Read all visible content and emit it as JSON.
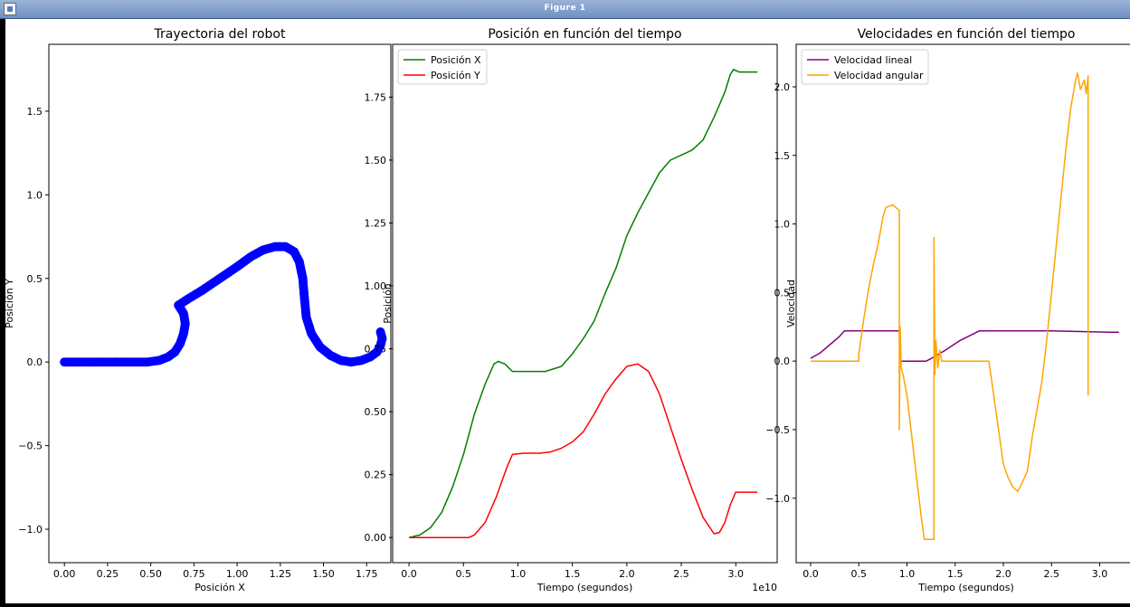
{
  "window": {
    "title": "Figure 1"
  },
  "chart_data": [
    {
      "type": "scatter",
      "title": "Trayectoria del robot",
      "xlabel": "Posición X",
      "ylabel": "Posición Y",
      "xlim": [
        -0.09,
        1.89
      ],
      "ylim": [
        -1.2,
        1.9
      ],
      "x_ticks": [
        "0.00",
        "0.25",
        "0.50",
        "0.75",
        "1.00",
        "1.25",
        "1.50",
        "1.75"
      ],
      "y_ticks": [
        "−1.0",
        "−0.5",
        "0.0",
        "0.5",
        "1.0",
        "1.5"
      ],
      "color": "#0000ff",
      "points": [
        [
          0.0,
          0.0
        ],
        [
          0.1,
          0.0
        ],
        [
          0.2,
          0.0
        ],
        [
          0.3,
          0.0
        ],
        [
          0.4,
          0.0
        ],
        [
          0.48,
          0.0
        ],
        [
          0.55,
          0.01
        ],
        [
          0.6,
          0.03
        ],
        [
          0.64,
          0.06
        ],
        [
          0.67,
          0.11
        ],
        [
          0.69,
          0.17
        ],
        [
          0.7,
          0.23
        ],
        [
          0.69,
          0.29
        ],
        [
          0.66,
          0.34
        ],
        [
          0.72,
          0.38
        ],
        [
          0.8,
          0.43
        ],
        [
          0.9,
          0.5
        ],
        [
          1.0,
          0.57
        ],
        [
          1.08,
          0.63
        ],
        [
          1.15,
          0.67
        ],
        [
          1.22,
          0.69
        ],
        [
          1.28,
          0.69
        ],
        [
          1.33,
          0.66
        ],
        [
          1.36,
          0.6
        ],
        [
          1.38,
          0.5
        ],
        [
          1.39,
          0.38
        ],
        [
          1.4,
          0.27
        ],
        [
          1.43,
          0.17
        ],
        [
          1.48,
          0.09
        ],
        [
          1.54,
          0.04
        ],
        [
          1.6,
          0.01
        ],
        [
          1.66,
          0.0
        ],
        [
          1.72,
          0.01
        ],
        [
          1.77,
          0.03
        ],
        [
          1.81,
          0.06
        ],
        [
          1.83,
          0.1
        ],
        [
          1.84,
          0.14
        ],
        [
          1.83,
          0.18
        ]
      ]
    },
    {
      "type": "line",
      "title": "Posición en función del tiempo",
      "xlabel": "Tiempo (segundos)",
      "ylabel": "Posición",
      "x_offset_label": "1e10",
      "xlim": [
        -0.15,
        3.38
      ],
      "ylim": [
        -0.1,
        1.96
      ],
      "x_ticks": [
        "0.0",
        "0.5",
        "1.0",
        "1.5",
        "2.0",
        "2.5",
        "3.0"
      ],
      "y_ticks": [
        "0.00",
        "0.25",
        "0.50",
        "0.75",
        "1.00",
        "1.25",
        "1.50",
        "1.75"
      ],
      "legend": {
        "position": "upper left"
      },
      "series": [
        {
          "name": "Posición X",
          "color": "#008000",
          "points": [
            [
              0.0,
              0.0
            ],
            [
              0.1,
              0.01
            ],
            [
              0.2,
              0.04
            ],
            [
              0.3,
              0.1
            ],
            [
              0.4,
              0.2
            ],
            [
              0.5,
              0.33
            ],
            [
              0.6,
              0.49
            ],
            [
              0.7,
              0.61
            ],
            [
              0.78,
              0.69
            ],
            [
              0.82,
              0.7
            ],
            [
              0.88,
              0.69
            ],
            [
              0.95,
              0.66
            ],
            [
              1.1,
              0.66
            ],
            [
              1.25,
              0.66
            ],
            [
              1.4,
              0.68
            ],
            [
              1.5,
              0.73
            ],
            [
              1.6,
              0.79
            ],
            [
              1.7,
              0.86
            ],
            [
              1.8,
              0.97
            ],
            [
              1.9,
              1.07
            ],
            [
              2.0,
              1.2
            ],
            [
              2.1,
              1.29
            ],
            [
              2.2,
              1.37
            ],
            [
              2.3,
              1.45
            ],
            [
              2.4,
              1.5
            ],
            [
              2.5,
              1.52
            ],
            [
              2.6,
              1.54
            ],
            [
              2.7,
              1.58
            ],
            [
              2.8,
              1.67
            ],
            [
              2.9,
              1.77
            ],
            [
              2.95,
              1.84
            ],
            [
              2.98,
              1.86
            ],
            [
              3.03,
              1.85
            ],
            [
              3.2,
              1.85
            ]
          ]
        },
        {
          "name": "Posición Y",
          "color": "#ff0000",
          "points": [
            [
              0.0,
              0.0
            ],
            [
              0.2,
              0.0
            ],
            [
              0.4,
              0.0
            ],
            [
              0.55,
              0.0
            ],
            [
              0.6,
              0.01
            ],
            [
              0.7,
              0.06
            ],
            [
              0.8,
              0.16
            ],
            [
              0.9,
              0.28
            ],
            [
              0.95,
              0.33
            ],
            [
              1.05,
              0.335
            ],
            [
              1.2,
              0.335
            ],
            [
              1.3,
              0.34
            ],
            [
              1.4,
              0.355
            ],
            [
              1.5,
              0.38
            ],
            [
              1.6,
              0.42
            ],
            [
              1.7,
              0.49
            ],
            [
              1.8,
              0.57
            ],
            [
              1.9,
              0.63
            ],
            [
              2.0,
              0.68
            ],
            [
              2.1,
              0.69
            ],
            [
              2.2,
              0.66
            ],
            [
              2.3,
              0.57
            ],
            [
              2.4,
              0.44
            ],
            [
              2.5,
              0.31
            ],
            [
              2.6,
              0.19
            ],
            [
              2.7,
              0.08
            ],
            [
              2.8,
              0.015
            ],
            [
              2.85,
              0.02
            ],
            [
              2.9,
              0.06
            ],
            [
              2.95,
              0.13
            ],
            [
              3.0,
              0.18
            ],
            [
              3.2,
              0.18
            ]
          ]
        }
      ]
    },
    {
      "type": "line",
      "title": "Velocidades en función del tiempo",
      "xlabel": "Tiempo (segundos)",
      "ylabel": "Velocidad",
      "xlim": [
        -0.15,
        3.38
      ],
      "ylim": [
        -1.47,
        2.31
      ],
      "x_ticks": [
        "0.0",
        "0.5",
        "1.0",
        "1.5",
        "2.0",
        "2.5",
        "3.0"
      ],
      "y_ticks": [
        "−1.0",
        "−0.5",
        "0.0",
        "0.5",
        "1.0",
        "1.5",
        "2.0"
      ],
      "legend": {
        "position": "upper left"
      },
      "series": [
        {
          "name": "Velocidad lineal",
          "color": "#800080",
          "points": [
            [
              0.0,
              0.02
            ],
            [
              0.1,
              0.06
            ],
            [
              0.2,
              0.12
            ],
            [
              0.3,
              0.18
            ],
            [
              0.35,
              0.22
            ],
            [
              0.6,
              0.22
            ],
            [
              0.92,
              0.22
            ],
            [
              0.93,
              0.0
            ],
            [
              1.2,
              0.0
            ],
            [
              1.28,
              0.03
            ],
            [
              1.4,
              0.08
            ],
            [
              1.55,
              0.15
            ],
            [
              1.75,
              0.22
            ],
            [
              2.5,
              0.22
            ],
            [
              3.1,
              0.21
            ],
            [
              3.2,
              0.21
            ]
          ]
        },
        {
          "name": "Velocidad angular",
          "color": "#ffa500",
          "points": [
            [
              0.0,
              0.0
            ],
            [
              0.5,
              0.0
            ],
            [
              0.5,
              0.05
            ],
            [
              0.55,
              0.3
            ],
            [
              0.6,
              0.52
            ],
            [
              0.65,
              0.7
            ],
            [
              0.7,
              0.85
            ],
            [
              0.75,
              1.05
            ],
            [
              0.78,
              1.12
            ],
            [
              0.85,
              1.14
            ],
            [
              0.92,
              1.1
            ],
            [
              0.92,
              -0.5
            ],
            [
              0.93,
              0.25
            ],
            [
              0.94,
              -0.05
            ],
            [
              0.96,
              -0.1
            ],
            [
              1.0,
              -0.25
            ],
            [
              1.05,
              -0.55
            ],
            [
              1.1,
              -0.85
            ],
            [
              1.15,
              -1.15
            ],
            [
              1.18,
              -1.3
            ],
            [
              1.28,
              -1.3
            ],
            [
              1.28,
              0.9
            ],
            [
              1.29,
              -0.1
            ],
            [
              1.3,
              0.15
            ],
            [
              1.32,
              -0.05
            ],
            [
              1.34,
              0.08
            ],
            [
              1.36,
              0.0
            ],
            [
              1.85,
              0.0
            ],
            [
              1.9,
              -0.25
            ],
            [
              1.95,
              -0.5
            ],
            [
              2.0,
              -0.75
            ],
            [
              2.05,
              -0.85
            ],
            [
              2.1,
              -0.92
            ],
            [
              2.15,
              -0.95
            ],
            [
              2.2,
              -0.88
            ],
            [
              2.25,
              -0.8
            ],
            [
              2.3,
              -0.55
            ],
            [
              2.35,
              -0.35
            ],
            [
              2.4,
              -0.15
            ],
            [
              2.45,
              0.15
            ],
            [
              2.5,
              0.5
            ],
            [
              2.55,
              0.85
            ],
            [
              2.6,
              1.2
            ],
            [
              2.65,
              1.55
            ],
            [
              2.7,
              1.85
            ],
            [
              2.75,
              2.05
            ],
            [
              2.77,
              2.1
            ],
            [
              2.8,
              1.98
            ],
            [
              2.84,
              2.05
            ],
            [
              2.86,
              1.95
            ],
            [
              2.88,
              2.08
            ],
            [
              2.88,
              -0.25
            ]
          ]
        }
      ]
    }
  ]
}
